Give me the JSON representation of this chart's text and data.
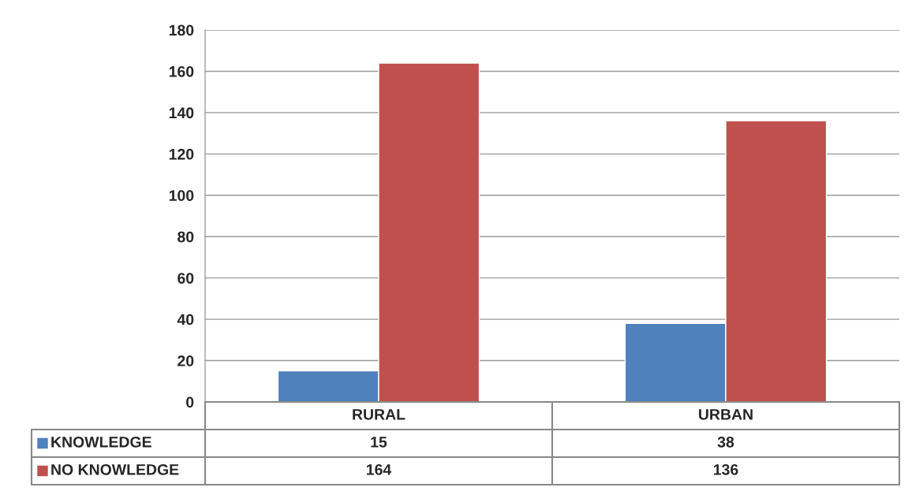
{
  "chart_data": {
    "type": "bar",
    "categories": [
      "RURAL",
      "URBAN"
    ],
    "series": [
      {
        "name": "KNOWLEDGE",
        "color": "#4f81bd",
        "values": [
          15,
          38
        ]
      },
      {
        "name": "NO KNOWLEDGE",
        "color": "#c0504d",
        "values": [
          164,
          136
        ]
      }
    ],
    "ylim": [
      0,
      180
    ],
    "yticks": [
      0,
      20,
      40,
      60,
      80,
      100,
      120,
      140,
      160,
      180
    ],
    "grid": "y",
    "legend": "bottom",
    "data_labels": true
  }
}
